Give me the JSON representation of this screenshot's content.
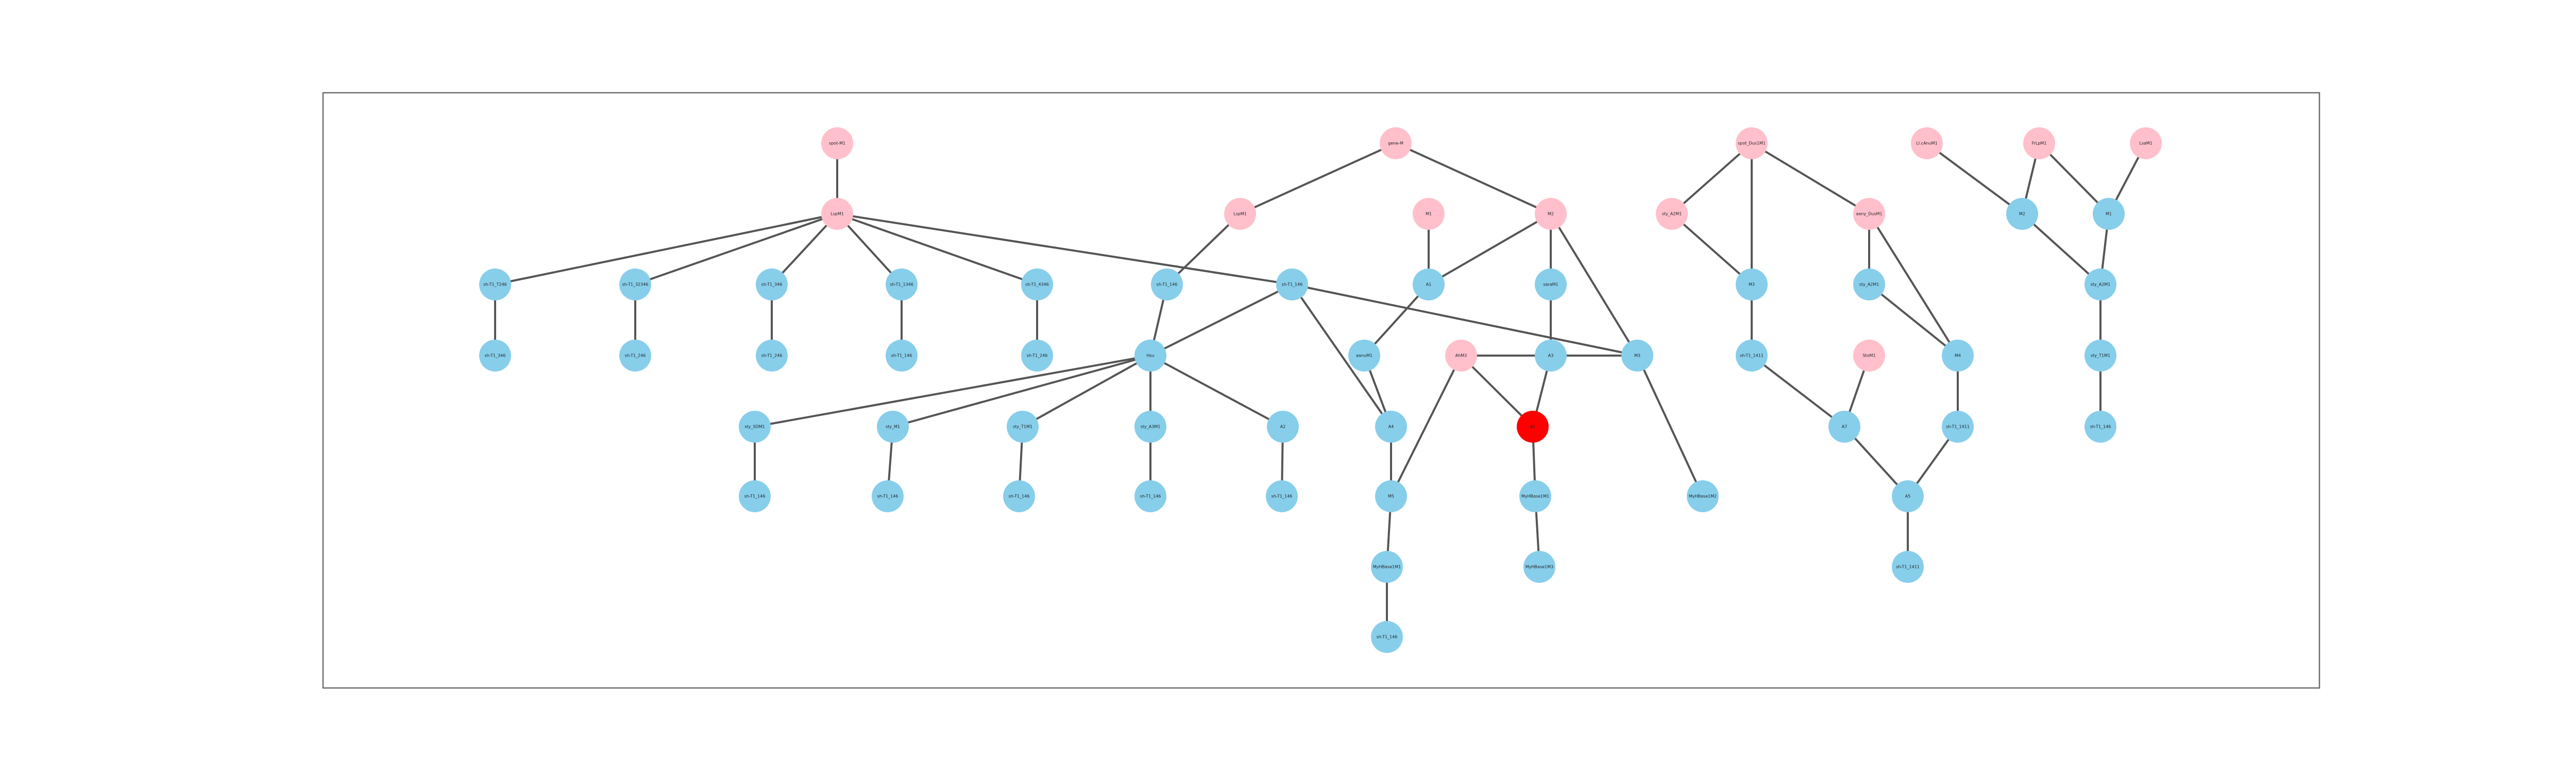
{
  "colors": {
    "background": "#ffffff",
    "frame": "#6b6b6b",
    "edge": "#555555",
    "pink_node": "#ffc0cb",
    "blue_node": "#87ceeb",
    "red_node": "#ff0000"
  },
  "graph": {
    "nodes": [
      {
        "id": "n01",
        "label": "spot-M1",
        "color": "pink"
      },
      {
        "id": "n02",
        "label": "LspM1",
        "color": "pink"
      },
      {
        "id": "n03",
        "label": "gene-M",
        "color": "pink"
      },
      {
        "id": "n04",
        "label": "LspM1",
        "color": "pink"
      },
      {
        "id": "n05",
        "label": "M1",
        "color": "pink"
      },
      {
        "id": "n06",
        "label": "M2",
        "color": "pink"
      },
      {
        "id": "n07",
        "label": "spot_Dus1M1",
        "color": "pink"
      },
      {
        "id": "n08",
        "label": "sty_A2M1",
        "color": "pink"
      },
      {
        "id": "n09",
        "label": "aany_DusM1",
        "color": "pink"
      },
      {
        "id": "n10",
        "label": "LI.cAnuM1",
        "color": "pink"
      },
      {
        "id": "n11",
        "label": "FrLpM1",
        "color": "pink"
      },
      {
        "id": "n12",
        "label": "LsaM1",
        "color": "pink"
      },
      {
        "id": "n13",
        "label": "AhM3",
        "color": "pink"
      },
      {
        "id": "n14",
        "label": "StoM1",
        "color": "pink"
      },
      {
        "id": "n15",
        "label": "sh-T1_T246",
        "color": "blue"
      },
      {
        "id": "n16",
        "label": "sh-T1_32346",
        "color": "blue"
      },
      {
        "id": "n17",
        "label": "sh-T1_346",
        "color": "blue"
      },
      {
        "id": "n18",
        "label": "sh-T1_1346",
        "color": "blue"
      },
      {
        "id": "n19",
        "label": "sh-T1_4346",
        "color": "blue"
      },
      {
        "id": "n20",
        "label": "sh-T1_146",
        "color": "blue"
      },
      {
        "id": "n21",
        "label": "sh-T1_146",
        "color": "blue"
      },
      {
        "id": "n22",
        "label": "A1",
        "color": "blue"
      },
      {
        "id": "n23",
        "label": "saraM1",
        "color": "blue"
      },
      {
        "id": "n24",
        "label": "M3",
        "color": "blue"
      },
      {
        "id": "n25",
        "label": "sty_A2M1",
        "color": "blue"
      },
      {
        "id": "n26",
        "label": "M2",
        "color": "blue"
      },
      {
        "id": "n27",
        "label": "M1",
        "color": "blue"
      },
      {
        "id": "n28",
        "label": "sh-T1_346",
        "color": "blue"
      },
      {
        "id": "n29",
        "label": "sh-T1_246",
        "color": "blue"
      },
      {
        "id": "n30",
        "label": "sh-T1_246",
        "color": "blue"
      },
      {
        "id": "n31",
        "label": "sh-T1_146",
        "color": "blue"
      },
      {
        "id": "n32",
        "label": "sh-T1_246",
        "color": "blue"
      },
      {
        "id": "n33",
        "label": "Hsu",
        "color": "blue"
      },
      {
        "id": "n34",
        "label": "aanuM1",
        "color": "blue"
      },
      {
        "id": "n35",
        "label": "A3",
        "color": "blue"
      },
      {
        "id": "n36",
        "label": "M3",
        "color": "blue"
      },
      {
        "id": "n37",
        "label": "sh-T1_1411",
        "color": "blue"
      },
      {
        "id": "n38",
        "label": "M4",
        "color": "blue"
      },
      {
        "id": "n39",
        "label": "sty_A2M1",
        "color": "blue"
      },
      {
        "id": "n40",
        "label": "sty_T1M1",
        "color": "blue"
      },
      {
        "id": "n41",
        "label": "sty_SDM1",
        "color": "blue"
      },
      {
        "id": "n42",
        "label": "sty_M1",
        "color": "blue"
      },
      {
        "id": "n43",
        "label": "sty_T1M1",
        "color": "blue"
      },
      {
        "id": "n44",
        "label": "sty_A3M1",
        "color": "blue"
      },
      {
        "id": "n45",
        "label": "A4",
        "color": "blue"
      },
      {
        "id": "n46",
        "label": "A1",
        "color": "red"
      },
      {
        "id": "n47",
        "label": "A2",
        "color": "blue"
      },
      {
        "id": "n48",
        "label": "A7",
        "color": "blue"
      },
      {
        "id": "n49",
        "label": "sh-T1_1411",
        "color": "blue"
      },
      {
        "id": "n50",
        "label": "sh-T1_146",
        "color": "blue"
      },
      {
        "id": "n51",
        "label": "sh-T1_146",
        "color": "blue"
      },
      {
        "id": "n52",
        "label": "sh-T1_146",
        "color": "blue"
      },
      {
        "id": "n53",
        "label": "sh-T1_146",
        "color": "blue"
      },
      {
        "id": "n54",
        "label": "sh-T1_146",
        "color": "blue"
      },
      {
        "id": "n55",
        "label": "A5",
        "color": "blue"
      },
      {
        "id": "n56",
        "label": "MyHBase1M1",
        "color": "blue"
      },
      {
        "id": "n57",
        "label": "MyHBase1M2",
        "color": "blue"
      },
      {
        "id": "n58",
        "label": "M5",
        "color": "blue"
      },
      {
        "id": "n59",
        "label": "MyHBase1M1",
        "color": "blue"
      },
      {
        "id": "n60",
        "label": "sh-T1_146",
        "color": "blue"
      },
      {
        "id": "n61",
        "label": "sh-T1_146",
        "color": "blue"
      },
      {
        "id": "n62",
        "label": "MyHBase1M3",
        "color": "blue"
      },
      {
        "id": "n63",
        "label": "sh-T1_1411",
        "color": "blue"
      }
    ],
    "edges": [
      [
        "n01",
        "n02"
      ],
      [
        "n02",
        "n15"
      ],
      [
        "n02",
        "n16"
      ],
      [
        "n02",
        "n17"
      ],
      [
        "n02",
        "n18"
      ],
      [
        "n02",
        "n19"
      ],
      [
        "n02",
        "n21"
      ],
      [
        "n15",
        "n28"
      ],
      [
        "n16",
        "n29"
      ],
      [
        "n17",
        "n30"
      ],
      [
        "n18",
        "n31"
      ],
      [
        "n19",
        "n32"
      ],
      [
        "n03",
        "n04"
      ],
      [
        "n03",
        "n06"
      ],
      [
        "n04",
        "n20"
      ],
      [
        "n20",
        "n33"
      ],
      [
        "n21",
        "n33"
      ],
      [
        "n21",
        "n36"
      ],
      [
        "n21",
        "n45"
      ],
      [
        "n05",
        "n22"
      ],
      [
        "n22",
        "n34"
      ],
      [
        "n06",
        "n22"
      ],
      [
        "n06",
        "n23"
      ],
      [
        "n06",
        "n36"
      ],
      [
        "n23",
        "n35"
      ],
      [
        "n35",
        "n46"
      ],
      [
        "n07",
        "n08"
      ],
      [
        "n07",
        "n24"
      ],
      [
        "n07",
        "n09"
      ],
      [
        "n08",
        "n24"
      ],
      [
        "n24",
        "n37"
      ],
      [
        "n37",
        "n48"
      ],
      [
        "n09",
        "n25"
      ],
      [
        "n09",
        "n38"
      ],
      [
        "n25",
        "n38"
      ],
      [
        "n38",
        "n49"
      ],
      [
        "n49",
        "n55"
      ],
      [
        "n10",
        "n26"
      ],
      [
        "n11",
        "n26"
      ],
      [
        "n11",
        "n27"
      ],
      [
        "n12",
        "n27"
      ],
      [
        "n26",
        "n39"
      ],
      [
        "n27",
        "n39"
      ],
      [
        "n39",
        "n40"
      ],
      [
        "n40",
        "n50"
      ],
      [
        "n33",
        "n41"
      ],
      [
        "n33",
        "n42"
      ],
      [
        "n33",
        "n43"
      ],
      [
        "n33",
        "n44"
      ],
      [
        "n33",
        "n47"
      ],
      [
        "n41",
        "n51"
      ],
      [
        "n42",
        "n52"
      ],
      [
        "n43",
        "n53"
      ],
      [
        "n44",
        "n54"
      ],
      [
        "n47",
        "n61"
      ],
      [
        "n34",
        "n45"
      ],
      [
        "n13",
        "n46"
      ],
      [
        "n13",
        "n58"
      ],
      [
        "n13",
        "n36"
      ],
      [
        "n36",
        "n57"
      ],
      [
        "n45",
        "n58"
      ],
      [
        "n58",
        "n59"
      ],
      [
        "n59",
        "n60"
      ],
      [
        "n46",
        "n56"
      ],
      [
        "n56",
        "n62"
      ],
      [
        "n14",
        "n48"
      ],
      [
        "n48",
        "n55"
      ],
      [
        "n55",
        "n63"
      ]
    ]
  }
}
